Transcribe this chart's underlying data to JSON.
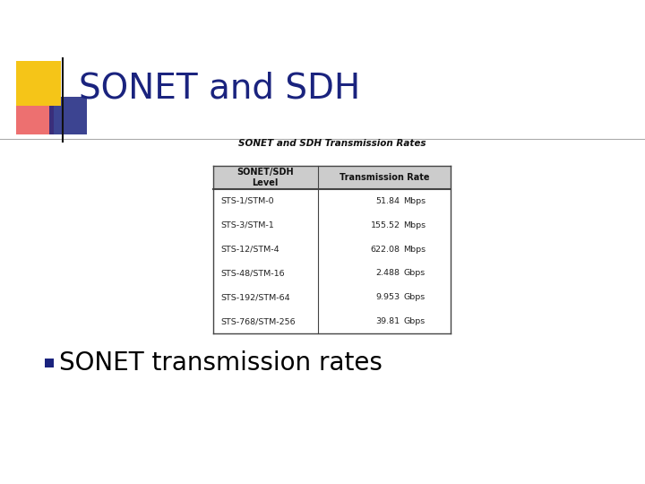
{
  "title": "SONET and SDH",
  "title_color": "#1a237e",
  "bg_color": "#ffffff",
  "table_title": "SONET and SDH Transmission Rates",
  "col_headers": [
    "SONET/SDH\nLevel",
    "Transmission Rate"
  ],
  "rows": [
    [
      "STS-1/STM-0",
      "51.84",
      "Mbps"
    ],
    [
      "STS-3/STM-1",
      "155.52",
      "Mbps"
    ],
    [
      "STS-12/STM-4",
      "622.08",
      "Mbps"
    ],
    [
      "STS-48/STM-16",
      "2.488",
      "Gbps"
    ],
    [
      "STS-192/STM-64",
      "9.953",
      "Gbps"
    ],
    [
      "STS-768/STM-256",
      "39.81",
      "Gbps"
    ]
  ],
  "bullet_text": "SONET transmission rates",
  "header_bg": "#cccccc",
  "table_border_color": "#444444",
  "decoration_yellow": "#f5c518",
  "decoration_red": "#e84040",
  "decoration_blue": "#1a237e",
  "slide_line_color": "#111111",
  "bullet_color": "#1a237e"
}
